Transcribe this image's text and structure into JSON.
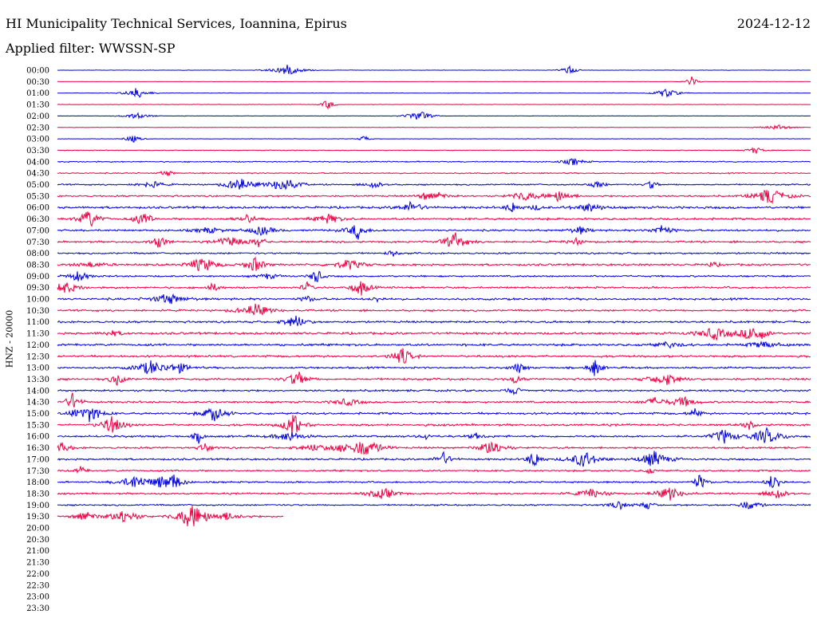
{
  "header": {
    "title": "HI Municipality Technical Services, Ioannina, Epirus",
    "date": "2024-12-12",
    "filter": "Applied filter: WWSSN-SP"
  },
  "chart_data": {
    "type": "line",
    "title": "HI Municipality Technical Services, Ioannina, Epirus",
    "ylabel": "HNZ - 20000",
    "tick_labels": [
      "00:00",
      "00:30",
      "01:00",
      "01:30",
      "02:00",
      "02:30",
      "03:00",
      "03:30",
      "04:00",
      "04:30",
      "05:00",
      "05:30",
      "06:00",
      "06:30",
      "07:00",
      "07:30",
      "08:00",
      "08:30",
      "09:00",
      "09:30",
      "10:00",
      "10:30",
      "11:00",
      "11:30",
      "12:00",
      "12:30",
      "13:00",
      "13:30",
      "14:00",
      "14:30",
      "15:00",
      "15:30",
      "16:00",
      "16:30",
      "17:00",
      "17:30",
      "18:00",
      "18:30",
      "19:00",
      "19:30",
      "20:00",
      "20:30",
      "21:00",
      "21:30",
      "22:00",
      "22:30",
      "23:00",
      "23:30"
    ],
    "trace_colors": [
      "#0000dd",
      "#ee0044"
    ],
    "noise_levels": [
      0.1,
      0.08,
      0.12,
      0.12,
      0.1,
      0.12,
      0.12,
      0.18,
      0.3,
      0.3,
      0.38,
      0.45,
      0.6,
      0.55,
      0.5,
      0.5,
      0.45,
      0.55,
      0.45,
      0.5,
      0.55,
      0.5,
      0.55,
      0.6,
      0.6,
      0.55,
      0.5,
      0.55,
      0.5,
      0.5,
      0.55,
      0.55,
      0.55,
      0.5,
      0.5,
      0.45,
      0.45,
      0.45,
      0.42,
      0.4
    ],
    "record_end_fraction": 0.3
  }
}
